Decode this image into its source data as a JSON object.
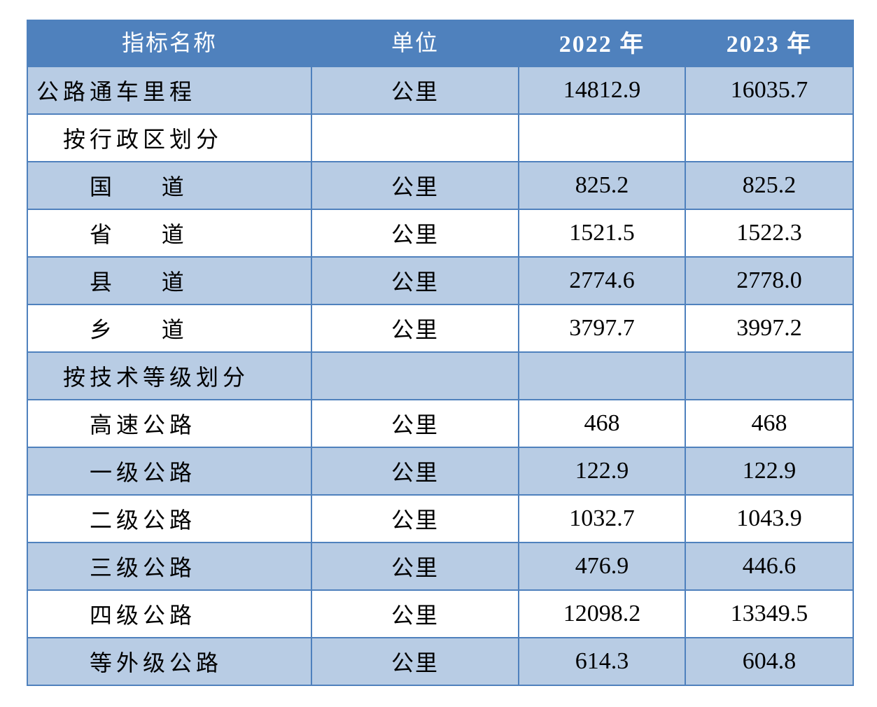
{
  "header": {
    "name": "指标名称",
    "unit": "单位",
    "year1": "2022 年",
    "year2": "2023 年"
  },
  "rows": [
    {
      "name": "公路通车里程",
      "unit": "公里",
      "v2022": "14812.9",
      "v2023": "16035.7"
    },
    {
      "name": "按行政区划分",
      "unit": "",
      "v2022": "",
      "v2023": ""
    },
    {
      "name": "国    道",
      "unit": "公里",
      "v2022": "825.2",
      "v2023": "825.2"
    },
    {
      "name": "省    道",
      "unit": "公里",
      "v2022": "1521.5",
      "v2023": "1522.3"
    },
    {
      "name": "县    道",
      "unit": "公里",
      "v2022": "2774.6",
      "v2023": "2778.0"
    },
    {
      "name": "乡    道",
      "unit": "公里",
      "v2022": "3797.7",
      "v2023": "3997.2"
    },
    {
      "name": "按技术等级划分",
      "unit": "",
      "v2022": "",
      "v2023": ""
    },
    {
      "name": "高速公路",
      "unit": "公里",
      "v2022": "468",
      "v2023": "468"
    },
    {
      "name": "一级公路",
      "unit": "公里",
      "v2022": "122.9",
      "v2023": "122.9"
    },
    {
      "name": "二级公路",
      "unit": "公里",
      "v2022": "1032.7",
      "v2023": "1043.9"
    },
    {
      "name": "三级公路",
      "unit": "公里",
      "v2022": "476.9",
      "v2023": "446.6"
    },
    {
      "name": "四级公路",
      "unit": "公里",
      "v2022": "12098.2",
      "v2023": "13349.5"
    },
    {
      "name": "等外级公路",
      "unit": "公里",
      "v2022": "614.3",
      "v2023": "604.8"
    }
  ],
  "colors": {
    "header_bg": "#4f81bd",
    "band_bg": "#b8cce4",
    "grid": "#4f81bd"
  }
}
